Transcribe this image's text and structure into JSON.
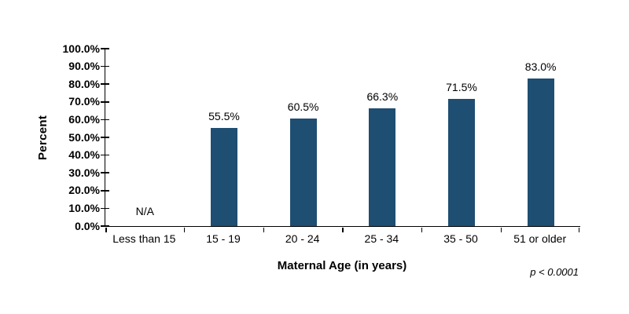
{
  "chart_data": {
    "type": "bar",
    "title": "",
    "xlabel": "Maternal Age (in years)",
    "ylabel": "Percent",
    "categories": [
      "Less than 15",
      "15 - 19",
      "20 - 24",
      "25 - 34",
      "35 - 50",
      "51 or older"
    ],
    "values": [
      null,
      55.5,
      60.5,
      66.3,
      71.5,
      83.0
    ],
    "data_labels": [
      "N/A",
      "55.5%",
      "60.5%",
      "66.3%",
      "71.5%",
      "83.0%"
    ],
    "ylim": [
      0,
      100
    ],
    "ytick_step": 10,
    "ytick_labels": [
      "0.0%",
      "10.0%",
      "20.0%",
      "30.0%",
      "40.0%",
      "50.0%",
      "60.0%",
      "70.0%",
      "80.0%",
      "90.0%",
      "100.0%"
    ],
    "grid": false,
    "legend": "none",
    "bar_color": "#1F4E73",
    "axis_color": "#000000",
    "text_color": "#000000",
    "background": "#FFFFFF",
    "annotation": "p < 0.0001"
  }
}
